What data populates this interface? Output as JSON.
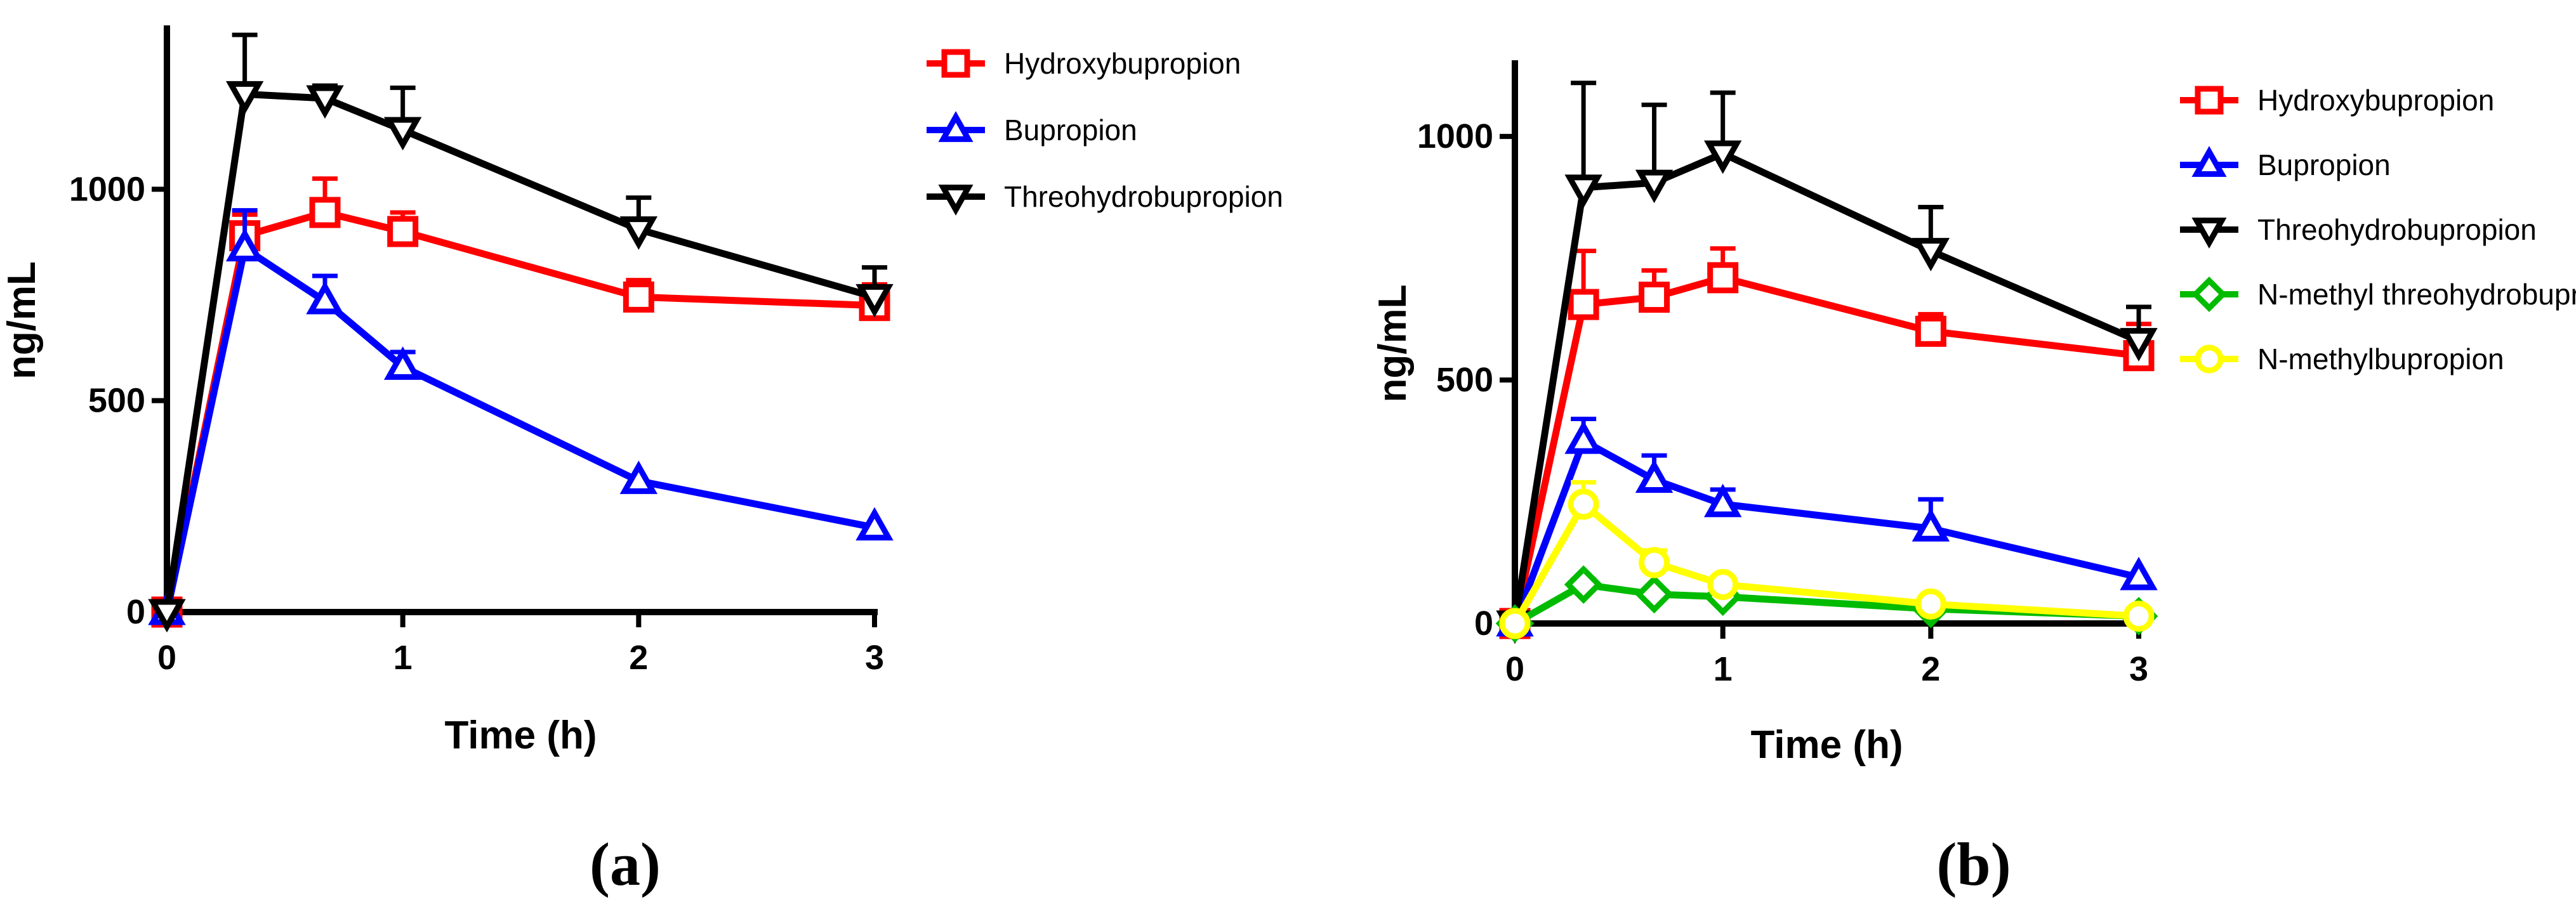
{
  "chart_data": [
    {
      "type": "line",
      "panel_label": "(a)",
      "xlabel": "Time (h)",
      "ylabel": "ng/mL",
      "xlim": [
        0,
        3
      ],
      "ylim": [
        0,
        1380
      ],
      "xticks": [
        0,
        1,
        2,
        3
      ],
      "yticks": [
        0,
        500,
        1000
      ],
      "x": [
        0,
        0.33,
        0.67,
        1,
        2,
        3
      ],
      "legend_position": "right",
      "series": [
        {
          "name": "Hydroxybupropion",
          "color": "#ff0000",
          "marker": "square",
          "values": [
            0,
            890,
            945,
            900,
            745,
            725
          ],
          "errors": [
            0,
            50,
            80,
            45,
            40,
            50
          ]
        },
        {
          "name": "Bupropion",
          "color": "#0000ff",
          "marker": "triangle-up",
          "values": [
            0,
            860,
            735,
            580,
            310,
            200
          ],
          "errors": [
            0,
            90,
            60,
            35,
            0,
            0
          ]
        },
        {
          "name": "Threohydrobupropion",
          "color": "#000000",
          "marker": "triangle-down",
          "values": [
            0,
            1225,
            1215,
            1140,
            905,
            745
          ],
          "errors": [
            0,
            140,
            30,
            100,
            75,
            70
          ]
        }
      ]
    },
    {
      "type": "line",
      "panel_label": "(b)",
      "xlabel": "Time (h)",
      "ylabel": "ng/mL",
      "xlim": [
        0,
        3
      ],
      "ylim": [
        0,
        1150
      ],
      "xticks": [
        0,
        1,
        2,
        3
      ],
      "yticks": [
        0,
        500,
        1000
      ],
      "x": [
        0,
        0.33,
        0.67,
        1,
        2,
        3
      ],
      "legend_position": "right",
      "series": [
        {
          "name": "Hydroxybupropion",
          "color": "#ff0000",
          "marker": "square",
          "values": [
            0,
            655,
            670,
            710,
            600,
            550
          ],
          "errors": [
            0,
            110,
            55,
            60,
            35,
            65
          ]
        },
        {
          "name": "Bupropion",
          "color": "#0000ff",
          "marker": "triangle-up",
          "values": [
            0,
            375,
            295,
            245,
            195,
            95
          ],
          "errors": [
            0,
            45,
            50,
            30,
            60,
            0
          ]
        },
        {
          "name": "Threohydrobupropion",
          "color": "#000000",
          "marker": "triangle-down",
          "values": [
            0,
            895,
            905,
            965,
            765,
            580
          ],
          "errors": [
            0,
            215,
            160,
            125,
            90,
            70
          ]
        },
        {
          "name": "N-methyl threohydrobupropi",
          "color": "#00bb00",
          "marker": "diamond",
          "values": [
            0,
            80,
            60,
            55,
            30,
            15
          ],
          "errors": [
            0,
            10,
            8,
            8,
            5,
            5
          ]
        },
        {
          "name": "N-methylbupropion",
          "color": "#ffff00",
          "marker": "circle",
          "values": [
            0,
            245,
            125,
            80,
            40,
            15
          ],
          "errors": [
            0,
            45,
            25,
            15,
            10,
            5
          ]
        }
      ]
    }
  ]
}
